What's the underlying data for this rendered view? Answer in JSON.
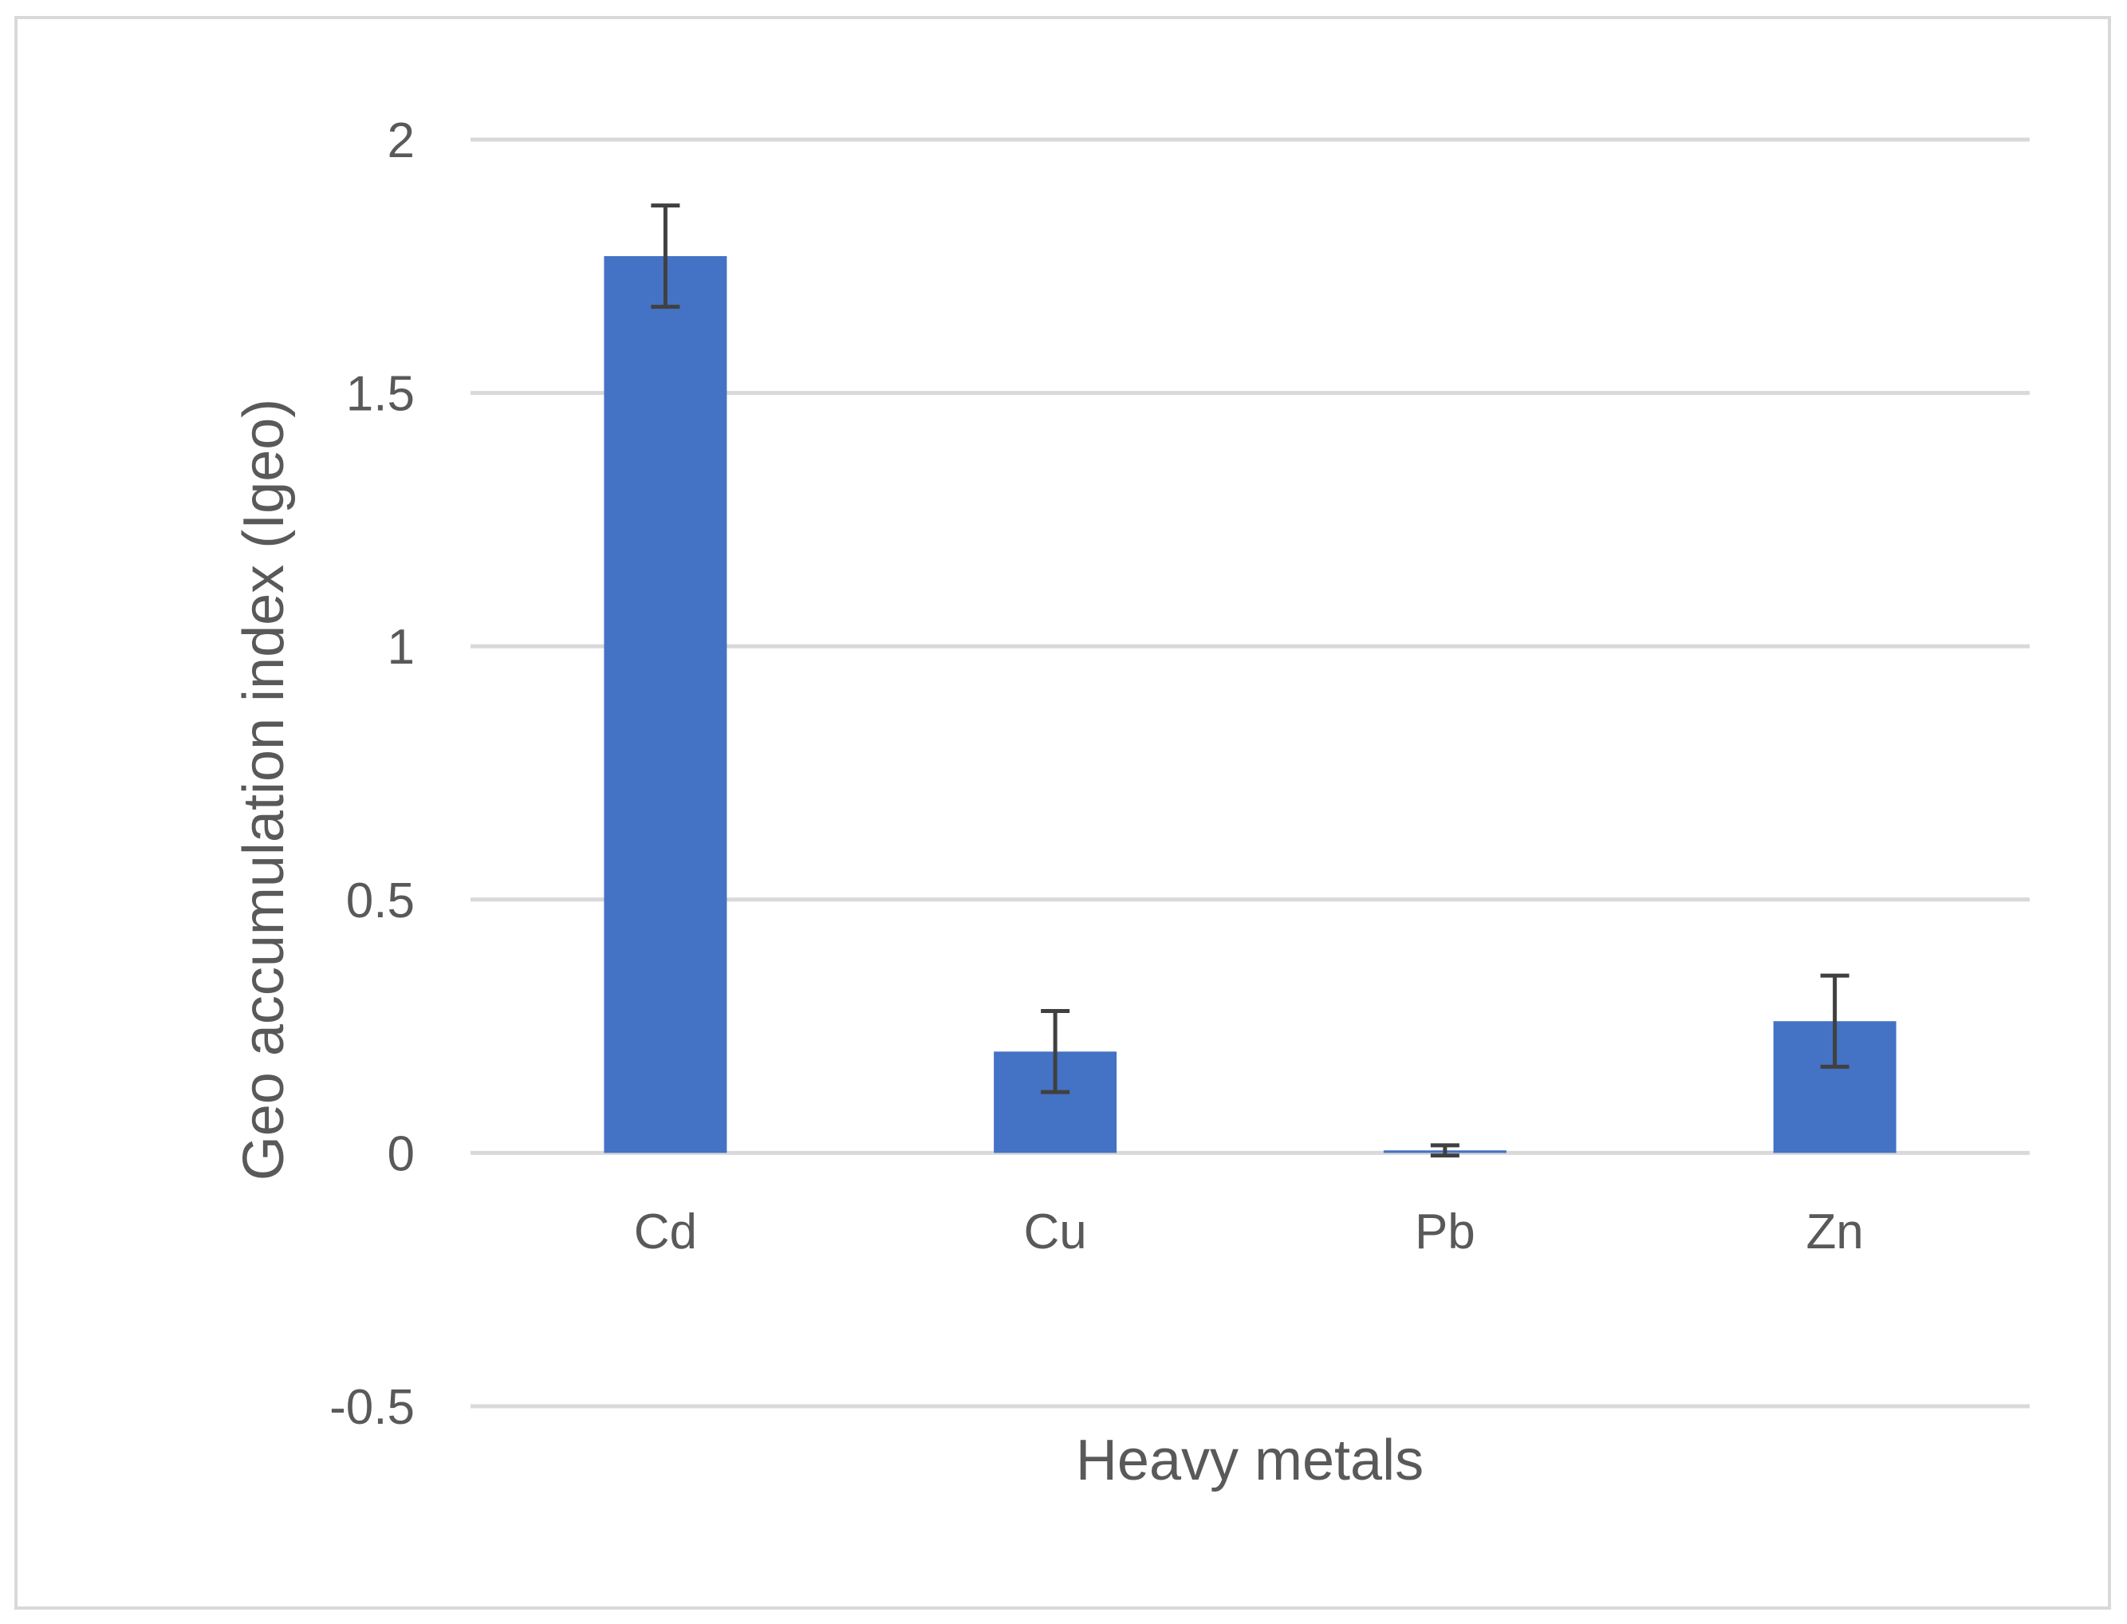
{
  "chart_data": {
    "type": "bar",
    "xlabel": "Heavy metals",
    "ylabel": "Geo accumulation index (Igeo)",
    "categories": [
      "Cd",
      "Cu",
      "Pb",
      "Zn"
    ],
    "values": [
      1.77,
      0.2,
      0.005,
      0.26
    ],
    "error": [
      0.1,
      0.08,
      0.01,
      0.09
    ],
    "ylim": [
      -0.5,
      2
    ],
    "yticks": [
      -0.5,
      0,
      0.5,
      1,
      1.5,
      2
    ],
    "ytick_labels": [
      "-0.5",
      "0",
      "0.5",
      "1",
      "1.5",
      "2"
    ],
    "grid": true,
    "legend": "none",
    "colors": {
      "bar": "#4472C4",
      "gridline": "#D9D9D9",
      "error_bar": "#404040",
      "text": "#595959",
      "frame": "#D9D9D9"
    }
  }
}
